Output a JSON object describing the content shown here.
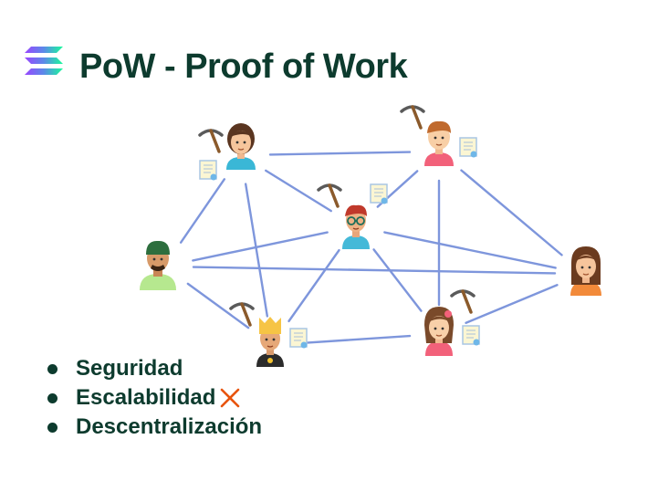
{
  "title": "PoW - Proof of Work",
  "logo_icon": "solana-logo-icon",
  "colors": {
    "title": "#0d3b2e",
    "edge": "#7e96dc",
    "x_mark": "#e8540c"
  },
  "bullets": [
    {
      "label": "Seguridad",
      "mark": ""
    },
    {
      "label": "Escalabilidad",
      "mark": "x-mark-icon"
    },
    {
      "label": "Descentralización",
      "mark": ""
    }
  ],
  "network": {
    "nodes": [
      {
        "id": "miner-top-left",
        "type": "miner-woman"
      },
      {
        "id": "miner-top-right",
        "type": "miner-man"
      },
      {
        "id": "miner-center",
        "type": "miner-man-glasses"
      },
      {
        "id": "node-left",
        "type": "man-beanie"
      },
      {
        "id": "node-right",
        "type": "woman"
      },
      {
        "id": "miner-bottom-left",
        "type": "miner-blond"
      },
      {
        "id": "miner-bottom-right",
        "type": "miner-girl"
      }
    ],
    "connections": [
      [
        "miner-top-left",
        "miner-top-right"
      ],
      [
        "miner-top-left",
        "miner-center"
      ],
      [
        "miner-top-left",
        "node-left"
      ],
      [
        "miner-top-left",
        "miner-bottom-left"
      ],
      [
        "miner-top-right",
        "miner-center"
      ],
      [
        "miner-top-right",
        "node-right"
      ],
      [
        "miner-top-right",
        "miner-bottom-right"
      ],
      [
        "miner-center",
        "node-left"
      ],
      [
        "miner-center",
        "node-right"
      ],
      [
        "miner-center",
        "miner-bottom-left"
      ],
      [
        "miner-center",
        "miner-bottom-right"
      ],
      [
        "node-left",
        "node-right"
      ],
      [
        "node-left",
        "miner-bottom-left"
      ],
      [
        "node-right",
        "miner-bottom-right"
      ],
      [
        "miner-bottom-left",
        "miner-bottom-right"
      ]
    ]
  }
}
